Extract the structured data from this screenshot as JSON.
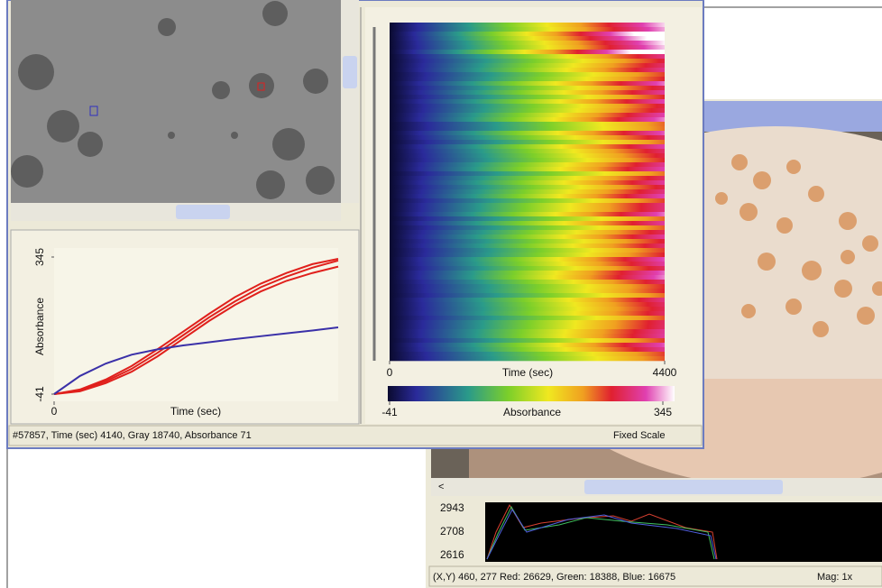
{
  "front_window": {
    "kinetics_chart": {
      "type": "line",
      "xlabel": "Time (sec)",
      "ylabel": "Absorbance",
      "xlim": [
        0,
        4400
      ],
      "xticks": [
        0
      ],
      "ylim": [
        -41,
        345
      ],
      "yticks": [
        -41,
        345
      ],
      "x": [
        0,
        400,
        800,
        1200,
        1600,
        2000,
        2400,
        2800,
        3200,
        3600,
        4000,
        4400
      ],
      "series": [
        {
          "color": "#e0201c",
          "values": [
            -41,
            -30,
            -5,
            30,
            75,
            125,
            175,
            220,
            260,
            290,
            315,
            335
          ]
        },
        {
          "color": "#e0201c",
          "values": [
            -41,
            -33,
            -10,
            22,
            65,
            115,
            165,
            210,
            248,
            278,
            300,
            318
          ]
        },
        {
          "color": "#e0201c",
          "values": [
            -41,
            -28,
            0,
            38,
            85,
            135,
            185,
            232,
            270,
            300,
            325,
            340
          ]
        },
        {
          "color": "#3a30a8",
          "values": [
            -41,
            10,
            45,
            70,
            85,
            96,
            105,
            114,
            122,
            130,
            138,
            147
          ]
        }
      ]
    },
    "heatmap": {
      "type": "heatmap",
      "xlabel": "Time (sec)",
      "xlim": [
        0,
        4400
      ],
      "xticks": [
        0,
        4400
      ],
      "colorbar_label": "Absorbance",
      "clim": [
        -41,
        345
      ],
      "cticks": [
        -41,
        345
      ]
    },
    "status": "#57857, Time (sec) 4140, Gray 18740, Absorbance 71",
    "scale_mode": "Fixed Scale"
  },
  "back_window": {
    "profile_ticks": [
      2943,
      2708,
      2616
    ],
    "status": "(X,Y) 460, 277  Red: 26629, Green: 18388, Blue: 16675",
    "mag": "Mag: 1x"
  }
}
